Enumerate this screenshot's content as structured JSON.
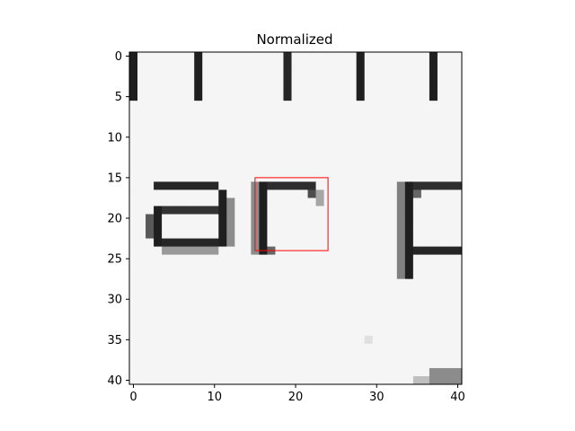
{
  "chart_data": {
    "type": "heatmap",
    "title": "Normalized",
    "xlabel": "",
    "ylabel": "",
    "colormap": "gray",
    "image_shape": [
      41,
      41
    ],
    "xlim": [
      -0.5,
      40.5
    ],
    "ylim": [
      40.5,
      -0.5
    ],
    "x_ticks": [
      0,
      10,
      20,
      30,
      40
    ],
    "y_ticks": [
      0,
      5,
      10,
      15,
      20,
      25,
      30,
      35,
      40
    ],
    "x_tick_labels": [
      "0",
      "10",
      "20",
      "30",
      "40"
    ],
    "y_tick_labels": [
      "0",
      "5",
      "10",
      "15",
      "20",
      "25",
      "30",
      "35",
      "40"
    ],
    "background_value": 0.96,
    "strokes": [
      {
        "x0": 0,
        "x1": 0,
        "y0": 0,
        "y1": 5,
        "value": 0.12
      },
      {
        "x0": 8,
        "x1": 8,
        "y0": 0,
        "y1": 5,
        "value": 0.12
      },
      {
        "x0": 19,
        "x1": 19,
        "y0": 0,
        "y1": 5,
        "value": 0.15
      },
      {
        "x0": 28,
        "x1": 28,
        "y0": 0,
        "y1": 5,
        "value": 0.12
      },
      {
        "x0": 37,
        "x1": 37,
        "y0": 0,
        "y1": 5,
        "value": 0.12
      },
      {
        "x0": 3,
        "x1": 10,
        "y0": 16,
        "y1": 16,
        "value": 0.15
      },
      {
        "x0": 11,
        "x1": 11,
        "y0": 17,
        "y1": 23,
        "value": 0.12
      },
      {
        "x0": 12,
        "x1": 12,
        "y0": 18,
        "y1": 23,
        "value": 0.55
      },
      {
        "x0": 3,
        "x1": 10,
        "y0": 19,
        "y1": 19,
        "value": 0.2
      },
      {
        "x0": 2,
        "x1": 2,
        "y0": 20,
        "y1": 22,
        "value": 0.35
      },
      {
        "x0": 3,
        "x1": 3,
        "y0": 19,
        "y1": 23,
        "value": 0.12
      },
      {
        "x0": 4,
        "x1": 10,
        "y0": 23,
        "y1": 23,
        "value": 0.15
      },
      {
        "x0": 4,
        "x1": 10,
        "y0": 24,
        "y1": 24,
        "value": 0.6
      },
      {
        "x0": 16,
        "x1": 16,
        "y0": 16,
        "y1": 24,
        "value": 0.12
      },
      {
        "x0": 15,
        "x1": 15,
        "y0": 16,
        "y1": 24,
        "value": 0.55
      },
      {
        "x0": 17,
        "x1": 22,
        "y0": 16,
        "y1": 16,
        "value": 0.18
      },
      {
        "x0": 22,
        "x1": 22,
        "y0": 17,
        "y1": 17,
        "value": 0.3
      },
      {
        "x0": 23,
        "x1": 23,
        "y0": 17,
        "y1": 18,
        "value": 0.65
      },
      {
        "x0": 17,
        "x1": 17,
        "y0": 24,
        "y1": 24,
        "value": 0.4
      },
      {
        "x0": 34,
        "x1": 34,
        "y0": 16,
        "y1": 27,
        "value": 0.12
      },
      {
        "x0": 33,
        "x1": 33,
        "y0": 16,
        "y1": 27,
        "value": 0.5
      },
      {
        "x0": 35,
        "x1": 40,
        "y0": 16,
        "y1": 16,
        "value": 0.18
      },
      {
        "x0": 35,
        "x1": 40,
        "y0": 24,
        "y1": 24,
        "value": 0.15
      },
      {
        "x0": 35,
        "x1": 35,
        "y0": 17,
        "y1": 17,
        "value": 0.4
      },
      {
        "x0": 37,
        "x1": 40,
        "y0": 39,
        "y1": 40,
        "value": 0.55
      },
      {
        "x0": 35,
        "x1": 36,
        "y0": 40,
        "y1": 40,
        "value": 0.75
      },
      {
        "x0": 29,
        "x1": 29,
        "y0": 35,
        "y1": 35,
        "value": 0.88
      }
    ],
    "annotations": [
      {
        "type": "rectangle",
        "x0": 15,
        "y0": 15,
        "x1": 24,
        "y1": 24,
        "color": "#ff0000"
      }
    ]
  }
}
